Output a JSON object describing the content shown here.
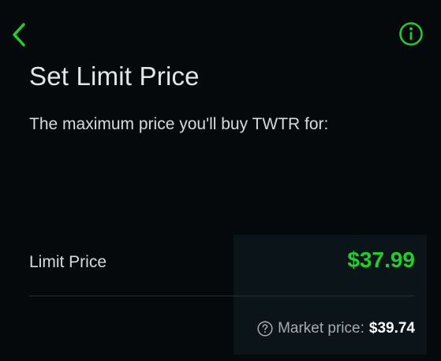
{
  "header": {
    "back_icon": "chevron-left-icon",
    "info_icon": "info-icon",
    "accent_color": "#21ce2e"
  },
  "page": {
    "title": "Set Limit Price",
    "subtitle": "The maximum price you'll buy TWTR for:"
  },
  "limit": {
    "label": "Limit Price",
    "value": "$37.99"
  },
  "market": {
    "help_icon": "question-circle-icon",
    "label": "Market price:",
    "value": "$39.74"
  }
}
